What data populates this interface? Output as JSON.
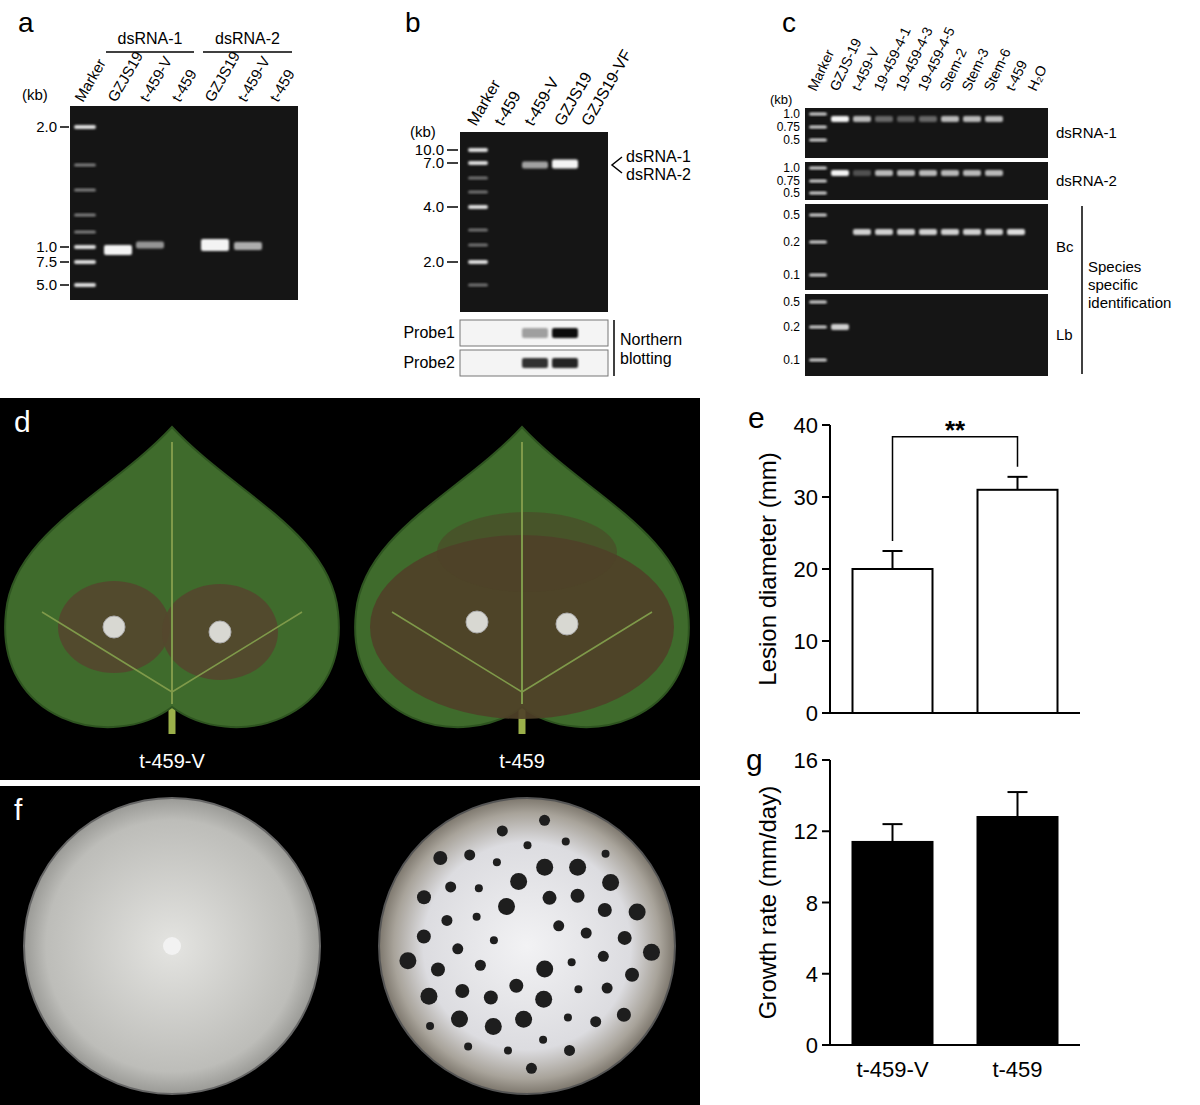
{
  "panels": {
    "a": {
      "label": "a",
      "kb_unit": "(kb)",
      "groups": [
        "dsRNA-1",
        "dsRNA-2"
      ],
      "lanes": [
        "Marker",
        "GZJS19",
        "t-459-V",
        "t-459",
        "GZJS19",
        "t-459-V",
        "t-459"
      ],
      "marker_sizes": [
        "2.0",
        "1.0",
        "7.5",
        "5.0"
      ]
    },
    "b": {
      "label": "b",
      "kb_unit": "(kb)",
      "lanes": [
        "Marker",
        "t-459",
        "t-459-V",
        "GZJS19",
        "GZJS19-VF"
      ],
      "marker_sizes": [
        "10.0",
        "7.0",
        "4.0",
        "2.0"
      ],
      "band_labels": [
        "dsRNA-1",
        "dsRNA-2"
      ],
      "blot_probes": [
        "Probe1",
        "Probe2"
      ],
      "blot_title": "Northern blotting"
    },
    "c": {
      "label": "c",
      "kb_unit": "(kb)",
      "lanes": [
        "Marker",
        "GZJS-19",
        "t-459-V",
        "19-459-4-1",
        "19-459-4-3",
        "19-459-4-5",
        "Stem-2",
        "Stem-3",
        "Stem-6",
        "t-459",
        "H₂O"
      ],
      "strips": [
        {
          "name": "dsRNA-1",
          "marker_sizes": [
            "1.0",
            "0.75",
            "0.5"
          ]
        },
        {
          "name": "dsRNA-2",
          "marker_sizes": [
            "1.0",
            "0.75",
            "0.5"
          ]
        },
        {
          "name": "Bc",
          "marker_sizes": [
            "0.5",
            "0.2",
            "0.1"
          ]
        },
        {
          "name": "Lb",
          "marker_sizes": [
            "0.5",
            "0.2",
            "0.1"
          ]
        }
      ],
      "group_label": "Species specific identification"
    },
    "d": {
      "label": "d",
      "captions": [
        "t-459-V",
        "t-459"
      ]
    },
    "f": {
      "label": "f"
    }
  },
  "chart_data": [
    {
      "type": "bar",
      "title": "e",
      "y_label": "Lesion diameter (mm)",
      "categories": [
        null,
        null
      ],
      "values": [
        20,
        31
      ],
      "errors": [
        2.5,
        1.8
      ],
      "color": "#ffffff",
      "ylim": [
        0,
        40
      ],
      "yticks": [
        0,
        10,
        20,
        30,
        40
      ],
      "annotations": [
        "**"
      ]
    },
    {
      "type": "bar",
      "title": "g",
      "y_label": "Growth rate (mm/day)",
      "categories": [
        "t-459-V",
        "t-459"
      ],
      "values": [
        11.4,
        12.8
      ],
      "errors": [
        1.0,
        1.4
      ],
      "color": "#000000",
      "ylim": [
        0,
        16
      ],
      "yticks": [
        0,
        4,
        8,
        12,
        16
      ]
    }
  ]
}
